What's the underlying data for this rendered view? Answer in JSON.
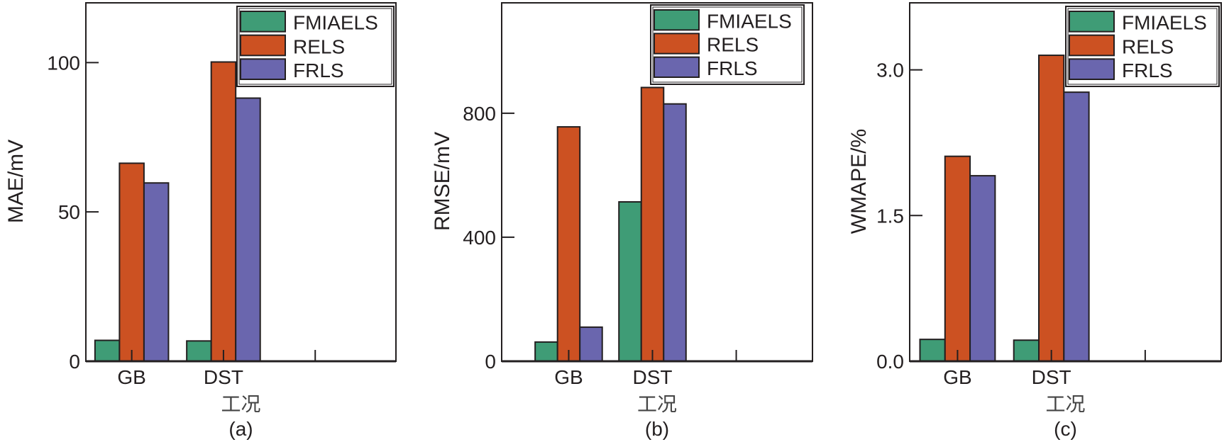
{
  "figure": {
    "xlabel": "工况",
    "legend_entries": [
      "FMIAELS",
      "RELS",
      "FRLS"
    ],
    "series_colors": {
      "FMIAELS": "#3f9c76",
      "RELS": "#cc5122",
      "FRLS": "#6a66ae"
    }
  },
  "chart_data": [
    {
      "type": "bar",
      "panel_label": "(a)",
      "title": "",
      "xlabel": "工况",
      "ylabel": "MAE/mV",
      "categories": [
        "GB",
        "DST",
        ""
      ],
      "series": [
        {
          "name": "FMIAELS",
          "color": "#3f9c76",
          "values": [
            7.0,
            6.8,
            null
          ]
        },
        {
          "name": "RELS",
          "color": "#cc5122",
          "values": [
            66.3,
            100.2,
            null
          ]
        },
        {
          "name": "FRLS",
          "color": "#6a66ae",
          "values": [
            59.7,
            88.1,
            null
          ]
        }
      ],
      "yticks": [
        0,
        50,
        100
      ],
      "ytick_labels": [
        "0",
        "50",
        "100"
      ],
      "ylim": [
        0,
        120
      ],
      "xlim": [
        0.5,
        3.88
      ],
      "grid": false,
      "legend_position": "top-right"
    },
    {
      "type": "bar",
      "panel_label": "(b)",
      "title": "",
      "xlabel": "工况",
      "ylabel": "RMSE/mV",
      "categories": [
        "GB",
        "DST",
        ""
      ],
      "series": [
        {
          "name": "FMIAELS",
          "color": "#3f9c76",
          "values": [
            62,
            514,
            null
          ]
        },
        {
          "name": "RELS",
          "color": "#cc5122",
          "values": [
            756,
            883,
            null
          ]
        },
        {
          "name": "FRLS",
          "color": "#6a66ae",
          "values": [
            110,
            830,
            null
          ]
        }
      ],
      "yticks": [
        0,
        400,
        800
      ],
      "ytick_labels": [
        "0",
        "400",
        "800"
      ],
      "ylim": [
        0,
        1156
      ],
      "xlim": [
        0.2,
        3.91
      ],
      "grid": false,
      "legend_position": "top-right"
    },
    {
      "type": "bar",
      "panel_label": "(c)",
      "title": "",
      "xlabel": "工况",
      "ylabel": "WMAPE/%",
      "categories": [
        "GB",
        "DST",
        ""
      ],
      "series": [
        {
          "name": "FMIAELS",
          "color": "#3f9c76",
          "values": [
            0.225,
            0.217,
            null
          ]
        },
        {
          "name": "RELS",
          "color": "#cc5122",
          "values": [
            2.11,
            3.15,
            null
          ]
        },
        {
          "name": "FRLS",
          "color": "#6a66ae",
          "values": [
            1.91,
            2.77,
            null
          ]
        }
      ],
      "yticks": [
        0.0,
        1.5,
        3.0
      ],
      "ytick_labels": [
        "0.0",
        "1.5",
        "3.0"
      ],
      "ylim": [
        0,
        3.69
      ],
      "xlim": [
        0.49,
        3.81
      ],
      "grid": false,
      "legend_position": "top-right"
    }
  ]
}
